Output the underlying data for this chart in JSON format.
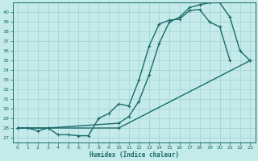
{
  "xlabel": "Humidex (Indice chaleur)",
  "bg_color": "#c5eaea",
  "line_color": "#1a6b6b",
  "grid_color": "#a8d5d5",
  "xlim": [
    -0.5,
    23.5
  ],
  "ylim": [
    26.5,
    41.0
  ],
  "xticks": [
    0,
    1,
    2,
    3,
    4,
    5,
    6,
    7,
    8,
    9,
    10,
    11,
    12,
    13,
    14,
    15,
    16,
    17,
    18,
    19,
    20,
    21,
    22,
    23
  ],
  "yticks": [
    27,
    28,
    29,
    30,
    31,
    32,
    33,
    34,
    35,
    36,
    37,
    38,
    39,
    40
  ],
  "line1_x": [
    0,
    1,
    2,
    3,
    4,
    5,
    6,
    7,
    8,
    9,
    10,
    11,
    12,
    13,
    14,
    15,
    16,
    17,
    18,
    19,
    20,
    21
  ],
  "line1_y": [
    28.0,
    28.0,
    27.7,
    28.0,
    27.3,
    27.3,
    27.2,
    27.2,
    29.0,
    29.5,
    30.5,
    30.3,
    33.0,
    36.5,
    38.8,
    39.2,
    39.3,
    40.2,
    40.3,
    39.0,
    38.5,
    35.0
  ],
  "line2_x": [
    0,
    10,
    23
  ],
  "line2_y": [
    28.0,
    28.0,
    35.0
  ],
  "line3_x": [
    0,
    3,
    10,
    11,
    12,
    13,
    14,
    15,
    16,
    17,
    18,
    19,
    20,
    21,
    22,
    23
  ],
  "line3_y": [
    28.0,
    28.0,
    28.5,
    29.2,
    30.8,
    33.5,
    36.8,
    39.0,
    39.5,
    40.5,
    40.8,
    41.0,
    41.0,
    39.5,
    36.0,
    35.0
  ]
}
